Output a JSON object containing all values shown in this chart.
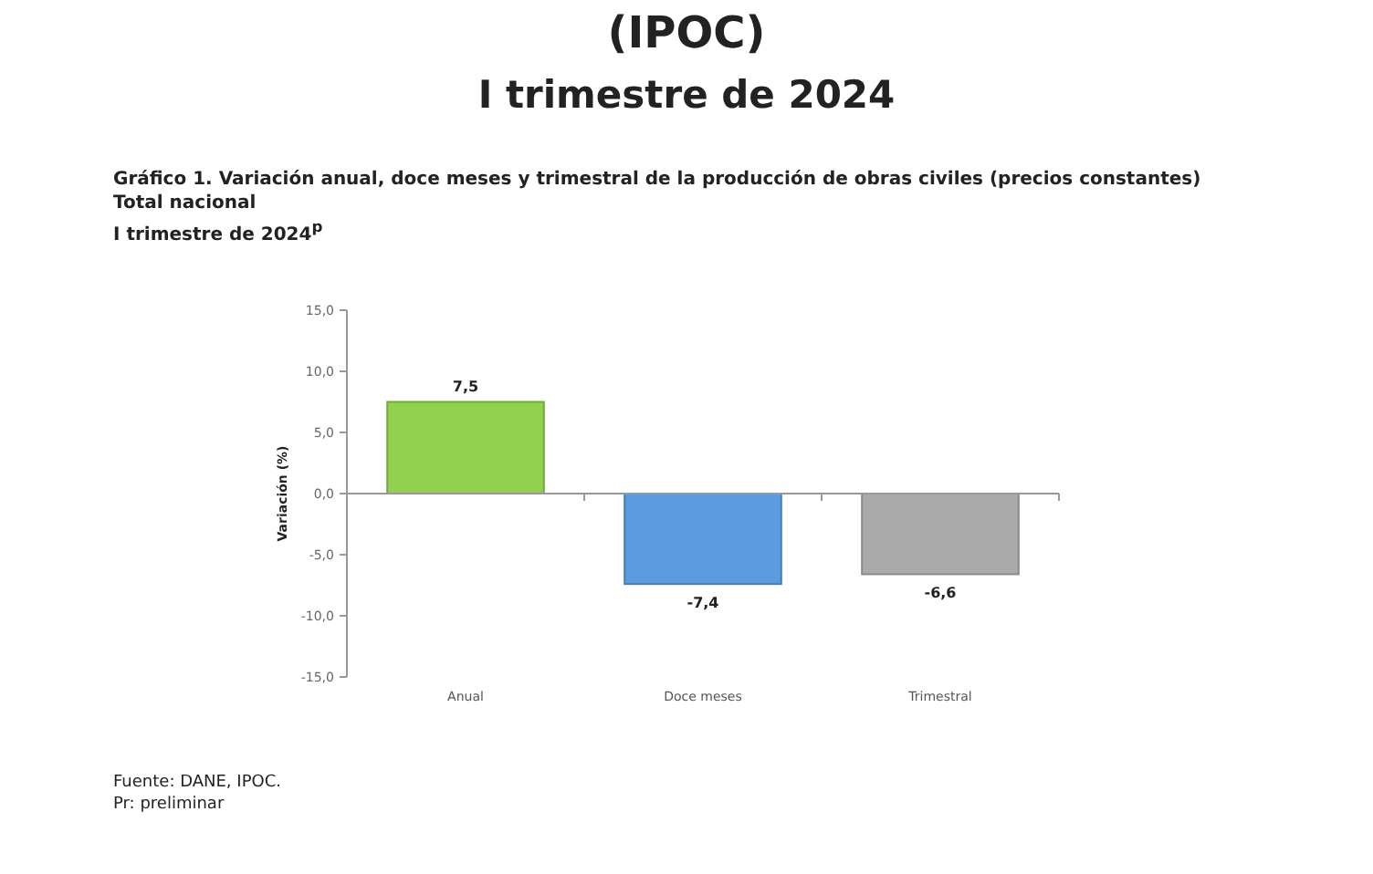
{
  "chart_data": {
    "type": "bar",
    "title": "Gráfico 1. Variación anual, doce meses y trimestral de la producción de obras civiles (precios constantes)",
    "subtitle": "Total nacional\nI trimestre de 2024$^{p}$",
    "ylabel": "Variación (%)",
    "categories": [
      "Anual",
      "Doce meses",
      "Trimestral"
    ],
    "values": [
      7.5,
      -7.4,
      -6.6
    ],
    "colors": [
      "#92d050",
      "#5b9be0",
      "#aaaaaa"
    ],
    "value_labels": [
      "7,5",
      "-7,4",
      "-6,6"
    ],
    "ylim": [
      -15,
      15
    ],
    "yticks": [
      {
        "value": 15,
        "label": "15,0"
      },
      {
        "value": 10,
        "label": "10,0"
      },
      {
        "value": 5,
        "label": "5,0"
      },
      {
        "value": 0,
        "label": "0,0"
      },
      {
        "value": -5,
        "label": "-5,0"
      },
      {
        "value": -10,
        "label": "-10,0"
      },
      {
        "value": -15,
        "label": "-15,0"
      }
    ],
    "annotations": [
      "(IPOC)",
      "I trimestre de 2024",
      "Fuente: DANE, IPOC.",
      "Pr: preliminar"
    ]
  }
}
